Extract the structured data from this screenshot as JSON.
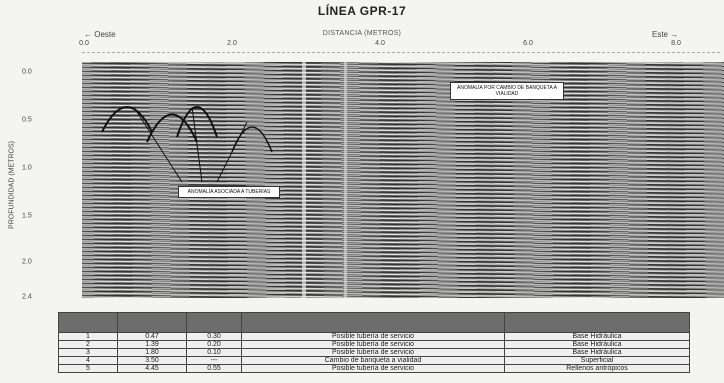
{
  "title": "LÍNEA GPR-17",
  "directions": {
    "left": "← Oeste",
    "right": "Este →"
  },
  "x_axis": {
    "label": "DISTANCIA (METROS)",
    "ticks": [
      "0.0",
      "2.0",
      "4.0",
      "6.0",
      "8.0"
    ]
  },
  "y_axis": {
    "label": "PROFUNDIDAD (METROS)",
    "ticks": [
      "0.0",
      "0.5",
      "1.0",
      "1.5",
      "2.0",
      "2.4"
    ]
  },
  "annotations": [
    {
      "text": "ANOMALÍA POR CAMBIO DE BANQUETA A VIALIDAD"
    },
    {
      "text": "ANOMALÍA ASOCIADA A TUBERÍAS"
    }
  ],
  "table": {
    "headers": [
      "",
      "",
      "",
      "",
      ""
    ],
    "rows": [
      [
        "1",
        "0.47",
        "0.30",
        "Posible tubería de servicio",
        "Base Hidráulica"
      ],
      [
        "2",
        "1.39",
        "0.20",
        "Posible tubería de servicio",
        "Base Hidráulica"
      ],
      [
        "3",
        "1.80",
        "0.10",
        "Posible tubería de servicio",
        "Base Hidráulica"
      ],
      [
        "4",
        "3.50",
        "---",
        "Cambio de banqueta a vialidad",
        "Superficial"
      ],
      [
        "5",
        "4.45",
        "0.55",
        "Posible tubería de servicio",
        "Rellenos antrópicos"
      ]
    ]
  }
}
